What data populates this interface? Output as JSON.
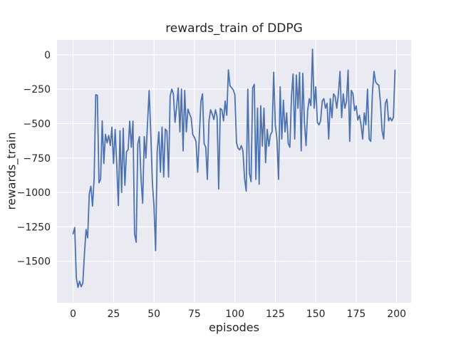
{
  "chart_data": {
    "type": "line",
    "title": "rewards_train of DDPG",
    "xlabel": "episodes",
    "ylabel": "rewards_train",
    "x_ticks": [
      0,
      25,
      50,
      75,
      100,
      125,
      150,
      175,
      200
    ],
    "y_ticks": [
      0,
      -250,
      -500,
      -750,
      -1000,
      -1250,
      -1500
    ],
    "xlim": [
      -9.95,
      208.95
    ],
    "ylim": [
      -1802,
      108
    ],
    "grid": true,
    "legend_position": "none",
    "colors": {
      "line": "#4C72B0",
      "axes_background": "#EAEAF2",
      "grid": "#FFFFFF",
      "figure_background": "#FFFFFF",
      "text": "#262626"
    },
    "series": [
      {
        "name": "rewards_train",
        "x_start": 0,
        "x_step": 1,
        "values": [
          -1300,
          -1255,
          -1620,
          -1690,
          -1645,
          -1685,
          -1660,
          -1450,
          -1270,
          -1330,
          -1010,
          -955,
          -1100,
          -900,
          -290,
          -295,
          -930,
          -905,
          -480,
          -790,
          -577,
          -640,
          -586,
          -660,
          -526,
          -790,
          -543,
          -800,
          -1095,
          -552,
          -1000,
          -534,
          -948,
          -706,
          -689,
          -482,
          -672,
          -482,
          -1300,
          -1362,
          -646,
          -595,
          -900,
          -1078,
          -595,
          -750,
          -500,
          -260,
          -560,
          -922,
          -1100,
          -1423,
          -700,
          -560,
          -853,
          -526,
          -888,
          -540,
          -555,
          -888,
          -300,
          -250,
          -284,
          -491,
          -380,
          -241,
          -560,
          -250,
          -698,
          -259,
          -560,
          -395,
          -430,
          -460,
          -580,
          -600,
          -630,
          -853,
          -600,
          -340,
          -284,
          -646,
          -672,
          -905,
          -480,
          -400,
          -430,
          -470,
          -400,
          -450,
          -975,
          -390,
          -400,
          -480,
          -336,
          -440,
          -110,
          -225,
          -240,
          -255,
          -290,
          -640,
          -680,
          -690,
          -660,
          -700,
          -900,
          -990,
          -250,
          -860,
          -922,
          -241,
          -215,
          -905,
          -388,
          -940,
          -370,
          -664,
          -388,
          -784,
          -543,
          -664,
          -580,
          -560,
          -127,
          -509,
          -612,
          -905,
          -233,
          -612,
          -330,
          -560,
          -422,
          -646,
          -672,
          -302,
          -140,
          -612,
          -147,
          -388,
          -129,
          -698,
          -135,
          -491,
          -660,
          -405,
          -319,
          -370,
          40,
          -388,
          -233,
          -491,
          -510,
          -480,
          -336,
          -319,
          -388,
          -353,
          -612,
          -319,
          -457,
          -284,
          -302,
          -388,
          -284,
          -121,
          -457,
          -284,
          -388,
          -336,
          -112,
          -629,
          -259,
          -284,
          -405,
          -371,
          -474,
          -440,
          -509,
          -612,
          -422,
          -509,
          -250,
          -612,
          -629,
          -284,
          -121,
          -196,
          -213,
          -221,
          -350,
          -553,
          -612,
          -353,
          -323,
          -480,
          -457,
          -480,
          -455,
          -112
        ]
      }
    ]
  }
}
